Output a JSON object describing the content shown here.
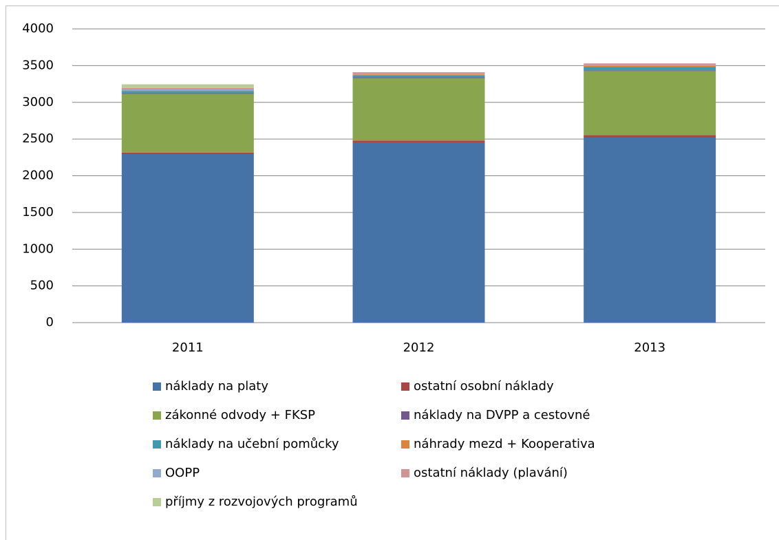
{
  "chart_data": {
    "type": "stacked_bar",
    "categories": [
      "2011",
      "2012",
      "2013"
    ],
    "series": [
      {
        "name": "náklady na platy",
        "color": "#4572a7",
        "values": [
          2295,
          2450,
          2520
        ]
      },
      {
        "name": "ostatní osobní náklady",
        "color": "#aa4643",
        "values": [
          20,
          30,
          35
        ]
      },
      {
        "name": "zákonné odvody + FKSP",
        "color": "#89a54e",
        "values": [
          800,
          850,
          870
        ]
      },
      {
        "name": "náklady na DVPP a cestovné",
        "color": "#71588f",
        "values": [
          10,
          10,
          10
        ]
      },
      {
        "name": "náklady na učební pomůcky",
        "color": "#4198af",
        "values": [
          30,
          30,
          45
        ]
      },
      {
        "name": "náhrady mezd + Kooperativa",
        "color": "#db843d",
        "values": [
          10,
          10,
          15
        ]
      },
      {
        "name": "OOPP",
        "color": "#93a9cf",
        "values": [
          20,
          10,
          10
        ]
      },
      {
        "name": "ostatní náklady (plavání)",
        "color": "#d19392",
        "values": [
          10,
          20,
          25
        ]
      },
      {
        "name": "příjmy z rozvojových programů",
        "color": "#b9cd96",
        "values": [
          50,
          0,
          0
        ]
      }
    ],
    "ylim": [
      0,
      4000
    ],
    "yticks": [
      0,
      500,
      1000,
      1500,
      2000,
      2500,
      3000,
      3500,
      4000
    ],
    "grid": true,
    "legend": "bottom"
  }
}
